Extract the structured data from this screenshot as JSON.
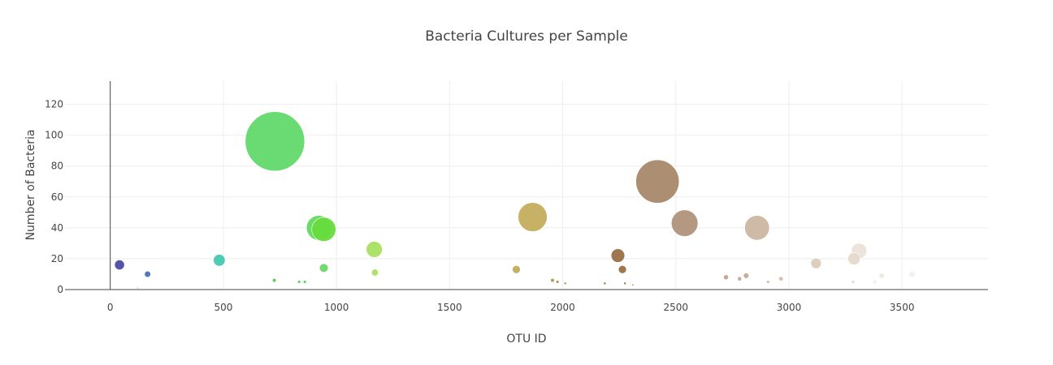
{
  "chart_data": {
    "type": "scatter",
    "title": "Bacteria Cultures per Sample",
    "xlabel": "OTU ID",
    "ylabel": "Number of Bacteria",
    "xlim": [
      -200,
      3880
    ],
    "ylim": [
      0,
      135
    ],
    "xticks": [
      0,
      500,
      1000,
      1500,
      2000,
      2500,
      3000,
      3500
    ],
    "yticks": [
      0,
      20,
      40,
      60,
      80,
      100,
      120
    ],
    "grid": true,
    "legend": "none",
    "bubble_size_encodes": "y",
    "points": [
      {
        "x": 41,
        "y": 16,
        "color": "#4b4ba8"
      },
      {
        "x": 165,
        "y": 10,
        "color": "#4a72b8"
      },
      {
        "x": 121,
        "y": 1,
        "color": "#4466b0"
      },
      {
        "x": 482,
        "y": 19,
        "color": "#45c8b0"
      },
      {
        "x": 725,
        "y": 6,
        "color": "#52c85a"
      },
      {
        "x": 728,
        "y": 96,
        "color": "#62d96a"
      },
      {
        "x": 835,
        "y": 5,
        "color": "#5cd25e"
      },
      {
        "x": 860,
        "y": 5,
        "color": "#5cd25e"
      },
      {
        "x": 922,
        "y": 40,
        "color": "#62d95c"
      },
      {
        "x": 944,
        "y": 39,
        "color": "#66dc3c"
      },
      {
        "x": 944,
        "y": 14,
        "color": "#6cd865"
      },
      {
        "x": 1167,
        "y": 26,
        "color": "#a8e060"
      },
      {
        "x": 1170,
        "y": 11,
        "color": "#a8e060"
      },
      {
        "x": 1795,
        "y": 13,
        "color": "#c0ad5c"
      },
      {
        "x": 1867,
        "y": 47,
        "color": "#c4ad5c"
      },
      {
        "x": 1955,
        "y": 6,
        "color": "#b0925a"
      },
      {
        "x": 1977,
        "y": 5,
        "color": "#b0925a"
      },
      {
        "x": 2011,
        "y": 4,
        "color": "#a88a55"
      },
      {
        "x": 2186,
        "y": 4,
        "color": "#9a7048"
      },
      {
        "x": 2244,
        "y": 22,
        "color": "#9a7046"
      },
      {
        "x": 2264,
        "y": 13,
        "color": "#9a7046"
      },
      {
        "x": 2275,
        "y": 4,
        "color": "#9a7046"
      },
      {
        "x": 2310,
        "y": 3,
        "color": "#9a7046"
      },
      {
        "x": 2419,
        "y": 70,
        "color": "#a8896a"
      },
      {
        "x": 2539,
        "y": 43,
        "color": "#b0927a"
      },
      {
        "x": 2722,
        "y": 8,
        "color": "#c0a48e"
      },
      {
        "x": 2782,
        "y": 7,
        "color": "#c4aa98"
      },
      {
        "x": 2811,
        "y": 9,
        "color": "#c4aa98"
      },
      {
        "x": 2859,
        "y": 40,
        "color": "#ccb5a2"
      },
      {
        "x": 2908,
        "y": 5,
        "color": "#d0bcae"
      },
      {
        "x": 2965,
        "y": 7,
        "color": "#d0bcae"
      },
      {
        "x": 3120,
        "y": 17,
        "color": "#dccbbd"
      },
      {
        "x": 3284,
        "y": 5,
        "color": "#e4d7cc"
      },
      {
        "x": 3288,
        "y": 20,
        "color": "#e6d9ce"
      },
      {
        "x": 3310,
        "y": 25,
        "color": "#ebe1d8"
      },
      {
        "x": 3380,
        "y": 5,
        "color": "#efe8e2"
      },
      {
        "x": 3410,
        "y": 9,
        "color": "#efe8e2"
      },
      {
        "x": 3544,
        "y": 10,
        "color": "#f3efeb"
      }
    ]
  }
}
